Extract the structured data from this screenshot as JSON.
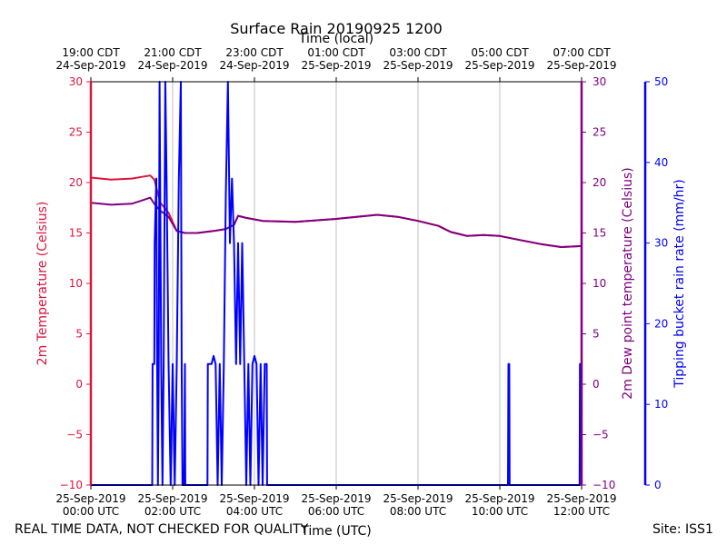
{
  "chart_data": {
    "type": "line",
    "title": "Surface Rain 20190925 1200",
    "top_xlabel": "Time (local)",
    "xlabel": "Time (UTC)",
    "ylabel_left": "2m Temperature (Celsius)",
    "ylabel_right": "2m Dew point temperature (Celsius)",
    "ylabel_rain": "Tipping bucket rain rate (mm/hr)",
    "xlim_utc_hours": [
      0,
      12
    ],
    "ylim_temperature": [
      -10,
      30
    ],
    "ylim_dewpoint": [
      -10,
      30
    ],
    "ylim_rain": [
      0,
      50
    ],
    "bottom_ticks": [
      "25-Sep-2019\n00:00 UTC",
      "25-Sep-2019\n02:00 UTC",
      "25-Sep-2019\n04:00 UTC",
      "25-Sep-2019\n06:00 UTC",
      "25-Sep-2019\n08:00 UTC",
      "25-Sep-2019\n10:00 UTC",
      "25-Sep-2019\n12:00 UTC"
    ],
    "top_ticks": [
      "19:00 CDT\n24-Sep-2019",
      "21:00 CDT\n24-Sep-2019",
      "23:00 CDT\n24-Sep-2019",
      "01:00 CDT\n25-Sep-2019",
      "03:00 CDT\n25-Sep-2019",
      "05:00 CDT\n25-Sep-2019",
      "07:00 CDT\n25-Sep-2019"
    ],
    "temp_yticks": [
      "30",
      "25",
      "20",
      "15",
      "10",
      "5",
      "0",
      "−5",
      "−10"
    ],
    "rain_yticks": [
      "50",
      "40",
      "30",
      "20",
      "10",
      "0"
    ],
    "grid": "vertical",
    "series": [
      {
        "name": "2m Temperature",
        "color": "#dc143c",
        "x": [
          0,
          0.5,
          1.0,
          1.3,
          1.45,
          1.55,
          1.7,
          1.9,
          2.1,
          2.3,
          2.6,
          3.0,
          3.3,
          3.5,
          3.6,
          3.8,
          4.2,
          5.0,
          6.0,
          6.5,
          7.0,
          7.5,
          8.0,
          8.5,
          8.8,
          9.2,
          9.6,
          10.0,
          10.5,
          11.0,
          11.5,
          12.0
        ],
        "y": [
          20.5,
          20.3,
          20.4,
          20.6,
          20.7,
          20.3,
          18.0,
          17.0,
          15.2,
          15.0,
          15.0,
          15.2,
          15.4,
          15.8,
          16.7,
          16.5,
          16.2,
          16.1,
          16.4,
          16.6,
          16.8,
          16.6,
          16.2,
          15.7,
          15.1,
          14.7,
          14.8,
          14.7,
          14.3,
          13.9,
          13.6,
          13.7
        ]
      },
      {
        "name": "2m Dew point temperature",
        "color": "#800080",
        "x": [
          0,
          0.5,
          1.0,
          1.3,
          1.45,
          1.55,
          1.7,
          1.9,
          2.1,
          2.3,
          2.6,
          3.0,
          3.3,
          3.5,
          3.6,
          3.8,
          4.2,
          5.0,
          6.0,
          6.5,
          7.0,
          7.5,
          8.0,
          8.5,
          8.8,
          9.2,
          9.6,
          10.0,
          10.5,
          11.0,
          11.5,
          12.0
        ],
        "y": [
          18.0,
          17.8,
          17.9,
          18.3,
          18.5,
          17.9,
          17.2,
          16.6,
          15.2,
          15.0,
          15.0,
          15.2,
          15.4,
          15.8,
          16.7,
          16.5,
          16.2,
          16.1,
          16.4,
          16.6,
          16.8,
          16.6,
          16.2,
          15.7,
          15.1,
          14.7,
          14.8,
          14.7,
          14.3,
          13.9,
          13.6,
          13.7
        ]
      },
      {
        "name": "Tipping bucket rain rate",
        "color": "#0000ff",
        "x": [
          0,
          1.5,
          1.51,
          1.55,
          1.56,
          1.6,
          1.62,
          1.64,
          1.66,
          1.68,
          1.72,
          1.75,
          1.78,
          1.82,
          1.85,
          1.9,
          1.95,
          2.0,
          2.05,
          2.1,
          2.15,
          2.2,
          2.22,
          2.24,
          2.28,
          2.3,
          2.31,
          2.85,
          2.86,
          2.95,
          3.0,
          3.05,
          3.1,
          3.15,
          3.2,
          3.25,
          3.3,
          3.35,
          3.4,
          3.45,
          3.5,
          3.55,
          3.6,
          3.65,
          3.7,
          3.75,
          3.8,
          3.85,
          3.9,
          3.95,
          4.0,
          4.05,
          4.1,
          4.15,
          4.2,
          4.25,
          4.3,
          4.31,
          10.2,
          10.21,
          10.23,
          10.24,
          11.95,
          11.96,
          11.98,
          12.0
        ],
        "y": [
          0,
          0,
          15,
          15,
          30,
          38,
          15,
          0,
          15,
          50,
          15,
          0,
          15,
          50,
          38,
          15,
          0,
          15,
          0,
          15,
          38,
          50,
          15,
          0,
          0,
          15,
          0,
          0,
          15,
          15,
          16,
          15,
          0,
          15,
          0,
          15,
          36,
          50,
          30,
          38,
          30,
          15,
          30,
          15,
          30,
          15,
          0,
          15,
          0,
          15,
          16,
          15,
          0,
          15,
          0,
          15,
          15,
          0,
          0,
          15,
          15,
          0,
          0,
          15,
          15,
          0
        ]
      }
    ]
  },
  "footer": {
    "left": "REAL TIME DATA, NOT CHECKED FOR QUALITY",
    "right": "Site: ISS1"
  }
}
